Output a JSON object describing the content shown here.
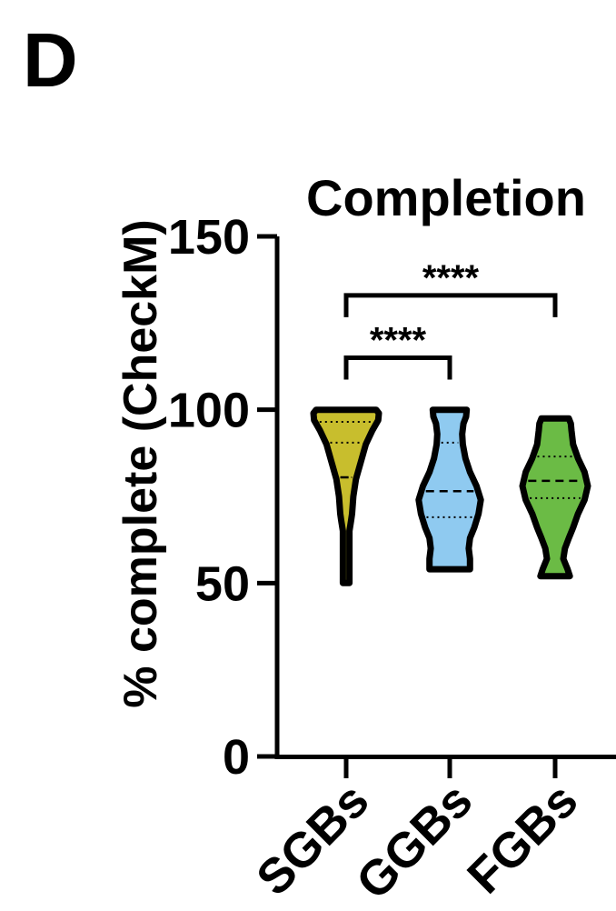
{
  "panel_label": "D",
  "chart_data": {
    "type": "violin",
    "title": "Completion",
    "ylabel": "% complete (CheckM)",
    "xlabel": "",
    "ylim": [
      0,
      150
    ],
    "yticks": [
      0,
      50,
      100,
      150
    ],
    "categories": [
      "SGBs",
      "GGBs",
      "FGBs"
    ],
    "violins": [
      {
        "category": "SGBs",
        "fill": "#c8be2d",
        "min": 50,
        "max": 100,
        "median": 80.5,
        "q1": 80.5,
        "q3": 90.5,
        "q_top": 96.5,
        "profile": [
          [
            50,
            0.1
          ],
          [
            55,
            0.1
          ],
          [
            60,
            0.1
          ],
          [
            65,
            0.1
          ],
          [
            68,
            0.15
          ],
          [
            70,
            0.18
          ],
          [
            75,
            0.22
          ],
          [
            80,
            0.3
          ],
          [
            85,
            0.45
          ],
          [
            90,
            0.6
          ],
          [
            94,
            0.8
          ],
          [
            97,
            0.98
          ],
          [
            99,
            1.0
          ],
          [
            100,
            0.92
          ]
        ]
      },
      {
        "category": "GGBs",
        "fill": "#8fcaf0",
        "min": 54,
        "max": 100,
        "median": 76.5,
        "q1": 69,
        "q3": 90.5,
        "profile": [
          [
            54,
            0.62
          ],
          [
            57,
            0.62
          ],
          [
            60,
            0.58
          ],
          [
            63,
            0.62
          ],
          [
            66,
            0.75
          ],
          [
            70,
            0.88
          ],
          [
            74,
            0.95
          ],
          [
            78,
            0.82
          ],
          [
            82,
            0.62
          ],
          [
            86,
            0.48
          ],
          [
            90,
            0.4
          ],
          [
            93,
            0.38
          ],
          [
            96,
            0.42
          ],
          [
            98,
            0.5
          ],
          [
            100,
            0.52
          ]
        ]
      },
      {
        "category": "FGBs",
        "fill": "#6bbb45",
        "min": 52,
        "max": 97.5,
        "median": 79.5,
        "q1": 74.5,
        "q3": 86.5,
        "profile": [
          [
            52,
            0.45
          ],
          [
            54,
            0.38
          ],
          [
            57,
            0.25
          ],
          [
            60,
            0.3
          ],
          [
            63,
            0.42
          ],
          [
            66,
            0.55
          ],
          [
            70,
            0.7
          ],
          [
            74,
            0.9
          ],
          [
            78,
            1.0
          ],
          [
            82,
            0.9
          ],
          [
            86,
            0.7
          ],
          [
            90,
            0.55
          ],
          [
            94,
            0.5
          ],
          [
            96,
            0.48
          ],
          [
            97.5,
            0.42
          ]
        ]
      }
    ],
    "significance": [
      {
        "from": "SGBs",
        "to": "FGBs",
        "label": "****",
        "y": 133
      },
      {
        "from": "SGBs",
        "to": "GGBs",
        "label": "****",
        "y": 115
      }
    ]
  }
}
